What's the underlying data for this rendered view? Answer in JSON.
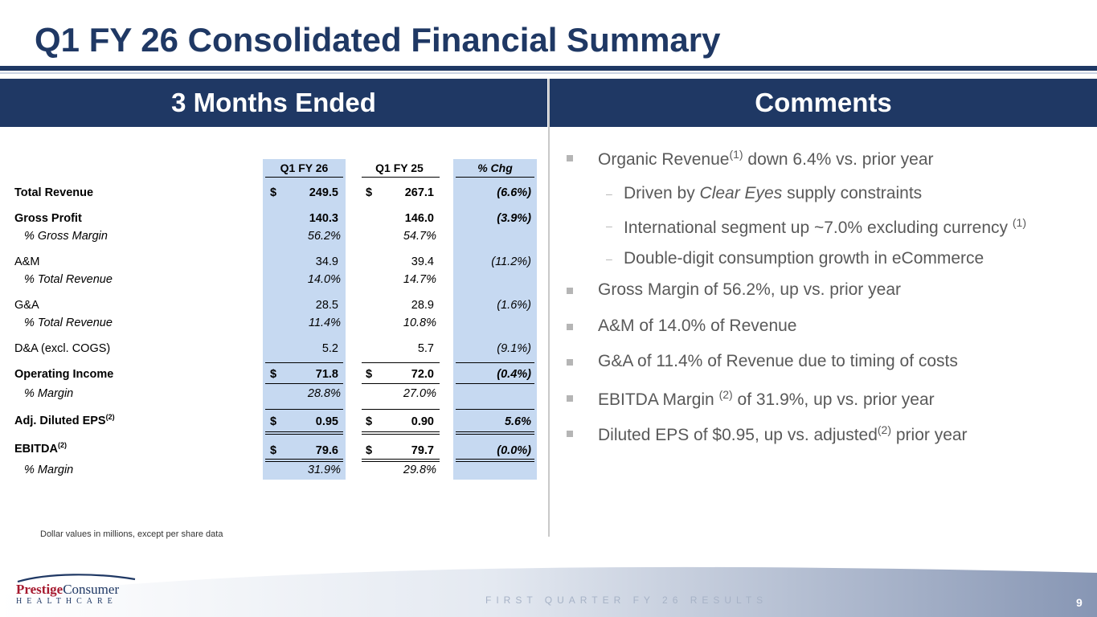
{
  "title": "Q1 FY 26 Consolidated Financial Summary",
  "left_header": "3 Months Ended",
  "right_header": "Comments",
  "table": {
    "columns": [
      "Q1 FY 26",
      "Q1 FY 25",
      "% Chg"
    ],
    "rows": {
      "total_revenue": {
        "label": "Total Revenue",
        "cur": "249.5",
        "prior": "267.1",
        "chg": "(6.6%)"
      },
      "gross_profit": {
        "label": "Gross Profit",
        "cur": "140.3",
        "prior": "146.0",
        "chg": "(3.9%)"
      },
      "gross_margin": {
        "label": "% Gross Margin",
        "cur": "56.2%",
        "prior": "54.7%"
      },
      "am": {
        "label": "A&M",
        "cur": "34.9",
        "prior": "39.4",
        "chg": "(11.2%)"
      },
      "am_pct": {
        "label": "% Total Revenue",
        "cur": "14.0%",
        "prior": "14.7%"
      },
      "ga": {
        "label": "G&A",
        "cur": "28.5",
        "prior": "28.9",
        "chg": "(1.6%)"
      },
      "ga_pct": {
        "label": "% Total Revenue",
        "cur": "11.4%",
        "prior": "10.8%"
      },
      "da": {
        "label": "D&A (excl. COGS)",
        "cur": "5.2",
        "prior": "5.7",
        "chg": "(9.1%)"
      },
      "op_income": {
        "label": "Operating Income",
        "cur": "71.8",
        "prior": "72.0",
        "chg": "(0.4%)"
      },
      "op_margin": {
        "label": "% Margin",
        "cur": "28.8%",
        "prior": "27.0%"
      },
      "eps": {
        "label": "Adj. Diluted EPS",
        "sup": "(2)",
        "cur": "0.95",
        "prior": "0.90",
        "chg": "5.6%"
      },
      "ebitda": {
        "label": "EBITDA",
        "sup": "(2)",
        "cur": "79.6",
        "prior": "79.7",
        "chg": "(0.0%)"
      },
      "ebitda_margin": {
        "label": "% Margin",
        "cur": "31.9%",
        "prior": "29.8%"
      }
    },
    "currency_symbol": "$"
  },
  "comments": {
    "b1": {
      "pre": "Organic Revenue",
      "sup": "(1)",
      "post": " down 6.4% vs. prior year"
    },
    "s1": {
      "pre": "Driven by ",
      "em": "Clear Eyes",
      "post": " supply constraints"
    },
    "s2": {
      "pre": "International segment up ~7.0% excluding currency ",
      "sup": "(1)"
    },
    "s3": {
      "text": "Double-digit consumption growth in eCommerce"
    },
    "b2": {
      "text": "Gross Margin of 56.2%, up vs. prior year"
    },
    "b3": {
      "text": "A&M of 14.0% of Revenue"
    },
    "b4": {
      "text": "G&A of 11.4% of Revenue due to timing of costs"
    },
    "b5": {
      "pre": "EBITDA Margin ",
      "sup": "(2)",
      "post": " of 31.9%, up vs. prior year"
    },
    "b6": {
      "pre": "Diluted EPS of $0.95, up vs. adjusted",
      "sup": "(2)",
      "post": " prior year"
    },
    "dash_char": "–"
  },
  "footnote": "Dollar values in millions, except per share data",
  "footer": "FIRST QUARTER FY 26 RESULTS",
  "page_number": "9",
  "logo": {
    "word1": "Prestige",
    "word2": "Consumer",
    "word3": "HEALTHCARE"
  },
  "colors": {
    "navy": "#1f3864",
    "highlight": "#c6d9f1",
    "comment_text": "#595959"
  }
}
